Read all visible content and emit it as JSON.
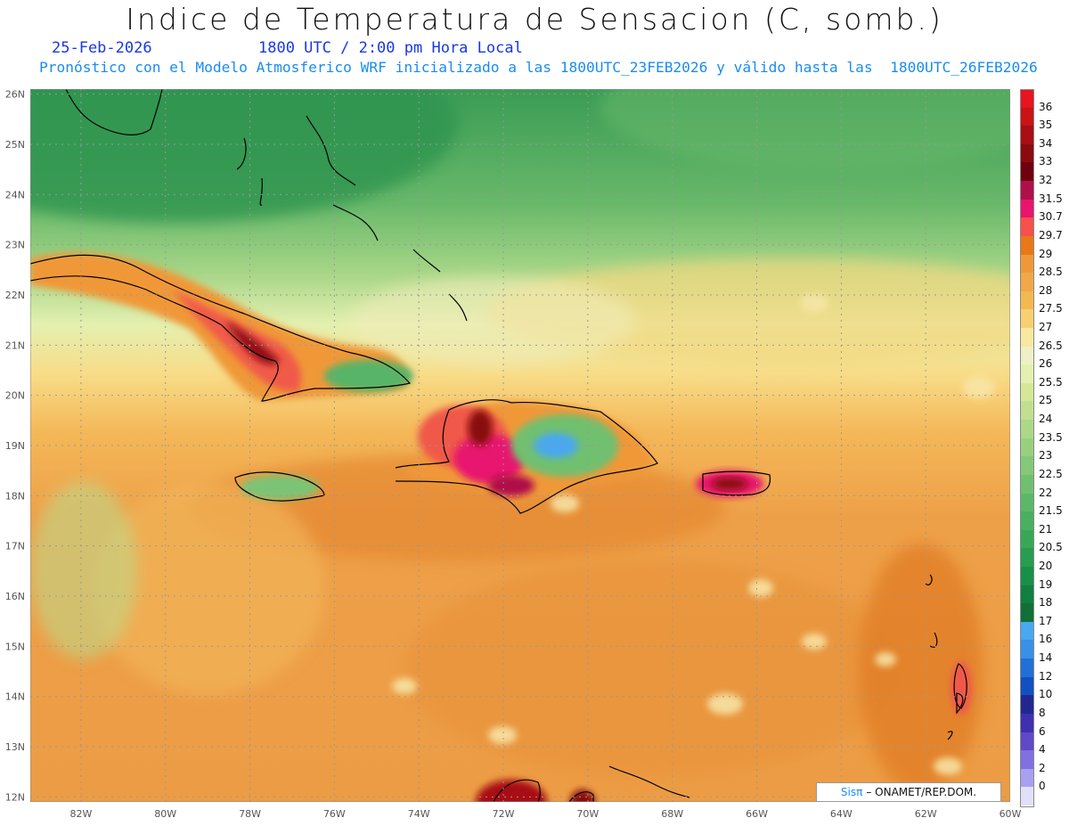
{
  "title": "Indice de Temperatura de Sensacion (C, somb.)",
  "date_line": "25-Feb-2026",
  "time_line": "1800 UTC / 2:00 pm Hora Local",
  "model_line": "Pronóstico con el Modelo Atmosferico WRF inicializado a las 1800UTC_23FEB2026 y válido hasta las  1800UTC_26FEB2026",
  "credit": {
    "brand": "Sisπ",
    "text": "– ONAMET/REP.DOM."
  },
  "map": {
    "lon_range": [
      -83.2,
      -60
    ],
    "lat_range": [
      11.9,
      26.1
    ],
    "lon_ticks": [
      "82W",
      "80W",
      "78W",
      "76W",
      "74W",
      "72W",
      "70W",
      "68W",
      "66W",
      "64W",
      "62W",
      "60W"
    ],
    "lon_tick_values": [
      -82,
      -80,
      -78,
      -76,
      -74,
      -72,
      -70,
      -68,
      -66,
      -64,
      -62,
      -60
    ],
    "lat_ticks": [
      "12N",
      "13N",
      "14N",
      "15N",
      "16N",
      "17N",
      "18N",
      "19N",
      "20N",
      "21N",
      "22N",
      "23N",
      "24N",
      "25N",
      "26N"
    ],
    "lat_tick_values": [
      12,
      13,
      14,
      15,
      16,
      17,
      18,
      19,
      20,
      21,
      22,
      23,
      24,
      25,
      26
    ],
    "grid": true
  },
  "colorbar": {
    "levels": [
      "36",
      "35",
      "34",
      "33",
      "32",
      "31.5",
      "30.7",
      "29.7",
      "29",
      "28.5",
      "28",
      "27.5",
      "27",
      "26.5",
      "26",
      "25.5",
      "25",
      "24",
      "23.5",
      "23",
      "22.5",
      "22",
      "21.5",
      "21",
      "20.5",
      "20",
      "19",
      "18",
      "17",
      "16",
      "14",
      "12",
      "10",
      "8",
      "6",
      "4",
      "2",
      "0"
    ],
    "colors": [
      "#e8141e",
      "#c81414",
      "#a80e14",
      "#8a0a10",
      "#700010",
      "#b0104a",
      "#e8146e",
      "#f8504a",
      "#e87818",
      "#f09838",
      "#f0a848",
      "#f4b850",
      "#f8d070",
      "#f8e8a0",
      "#f0f0c8",
      "#e4f0b0",
      "#d4e898",
      "#c0e090",
      "#acd888",
      "#98d080",
      "#84c878",
      "#70c070",
      "#5cb868",
      "#48b060",
      "#38a858",
      "#289c50",
      "#189048",
      "#108040",
      "#107038",
      "#48a8f0",
      "#3890e8",
      "#2070d8",
      "#1050c0",
      "#202890",
      "#4030b0",
      "#6048c8",
      "#8070e0",
      "#a8a0f0",
      "#e0e0f8"
    ]
  }
}
